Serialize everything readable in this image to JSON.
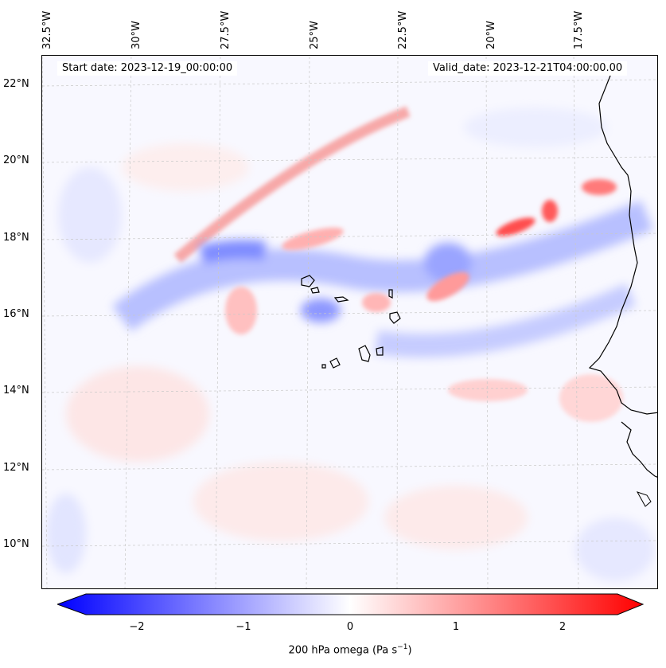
{
  "header": {
    "start_date": "Start date: 2023-12-19_00:00:00",
    "valid_date": "Valid_date: 2023-12-21T04:00:00.00"
  },
  "lon_labels": [
    "32.5°W",
    "30°W",
    "27.5°W",
    "25°W",
    "22.5°W",
    "20°W",
    "17.5°W"
  ],
  "lat_labels": [
    "22°N",
    "20°N",
    "18°N",
    "16°N",
    "14°N",
    "12°N",
    "10°N"
  ],
  "colorbar": {
    "ticks": [
      "−2",
      "−1",
      "0",
      "1",
      "2"
    ],
    "label_text": "200 hPa omega (Pa s",
    "label_exp": "−1",
    "label_close": ")",
    "range": [
      -2.7,
      2.7
    ],
    "min_color": "#0000ff",
    "mid_color": "#ffffff",
    "max_color": "#ff0000"
  },
  "colors": {
    "coastline": "#000000",
    "gridline": "#c0c0c0"
  }
}
